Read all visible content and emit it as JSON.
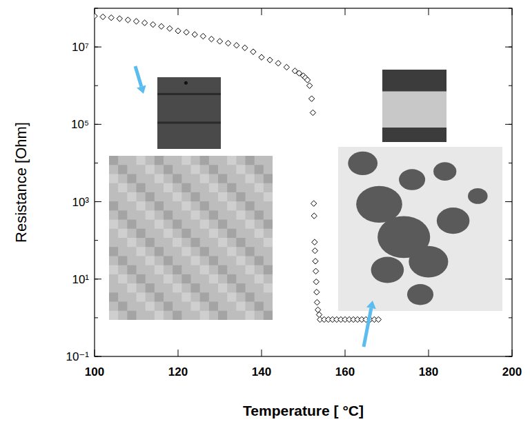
{
  "chart_data": {
    "type": "scatter",
    "x_label": "Temperature [ °C]",
    "y_label": "Resistance [Ohm]",
    "log": "y",
    "marker": "diamond",
    "color": "#000000",
    "xlim": [
      100,
      200
    ],
    "xticks": [
      100,
      120,
      140,
      160,
      180,
      200
    ],
    "ylim": [
      0.1,
      100000000
    ],
    "yticks": [
      {
        "value": 0.1,
        "label": "10⁻¹"
      },
      {
        "value": 10,
        "label": "10¹"
      },
      {
        "value": 1000,
        "label": "10³"
      },
      {
        "value": 100000,
        "label": "10⁵"
      },
      {
        "value": 10000000,
        "label": "10⁷"
      }
    ],
    "series": [
      {
        "name": "Resistance",
        "x": [
          100,
          102,
          104,
          106,
          108,
          110,
          112,
          114,
          116,
          118,
          120,
          122,
          124,
          126,
          128,
          130,
          132,
          134,
          136,
          138,
          140,
          142,
          144,
          146,
          148,
          149,
          150,
          150.5,
          151,
          151.5,
          152,
          152.3,
          152.5,
          152.6,
          152.7,
          152.8,
          152.9,
          153,
          153.1,
          153.2,
          153.3,
          153.5,
          153.8,
          154,
          155,
          156,
          157,
          158,
          159,
          160,
          161,
          162,
          163,
          164,
          165,
          166,
          167,
          168
        ],
        "values": [
          63000000,
          60000000,
          57000000,
          54000000,
          50000000,
          46000000,
          42000000,
          38000000,
          34000000,
          30000000,
          26000000,
          24000000,
          21000000,
          19000000,
          16000000,
          14000000,
          12500000,
          11000000,
          9500000,
          7500000,
          5400000,
          4600000,
          3800000,
          3000000,
          2400000,
          2100000,
          1800000,
          1600000,
          1400000,
          1000000,
          460000,
          200000,
          900,
          430,
          90,
          54,
          29,
          16,
          8.5,
          4.6,
          2.5,
          1.6,
          1.2,
          0.9,
          0.9,
          0.9,
          0.9,
          0.9,
          0.9,
          0.9,
          0.9,
          0.9,
          0.9,
          0.9,
          0.9,
          0.9,
          0.9,
          0.9
        ]
      }
    ]
  }
}
